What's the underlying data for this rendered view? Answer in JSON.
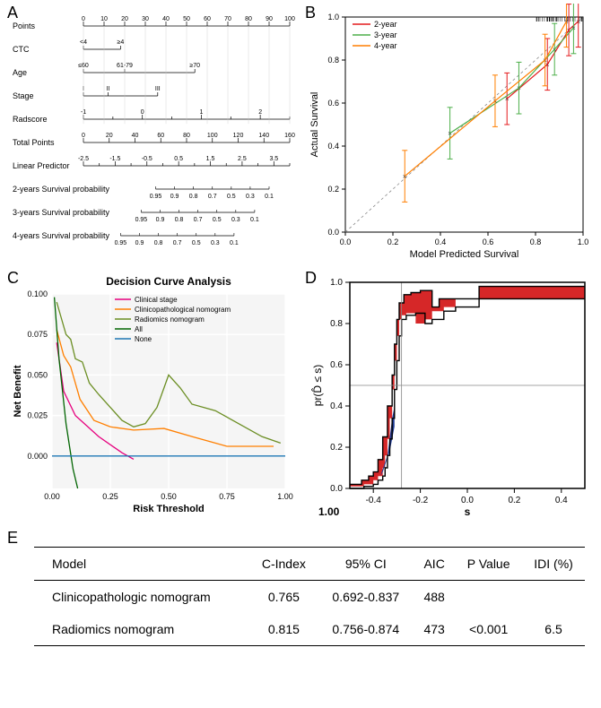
{
  "panelA": {
    "label": "A",
    "rows": [
      {
        "name": "Points",
        "type": "axis",
        "min": 0,
        "max": 100,
        "step": 10
      },
      {
        "name": "CTC",
        "type": "cat",
        "items": [
          {
            "label": "<4",
            "x": 0
          },
          {
            "label": "≥4",
            "x": 18
          }
        ]
      },
      {
        "name": "Age",
        "type": "cat",
        "items": [
          {
            "label": "≤60",
            "x": 0
          },
          {
            "label": "61-79",
            "x": 20
          },
          {
            "label": "≥70",
            "x": 54
          }
        ]
      },
      {
        "name": "Stage",
        "type": "cat",
        "items": [
          {
            "label": "I",
            "x": 0
          },
          {
            "label": "II",
            "x": 12
          },
          {
            "label": "III",
            "x": 36
          }
        ]
      },
      {
        "name": "Radscore",
        "type": "axis",
        "min": -1,
        "max": 2.5,
        "step": 0.5,
        "scaleTo": 100
      },
      {
        "name": "Total Points",
        "type": "axis",
        "min": 0,
        "max": 160,
        "step": 20
      },
      {
        "name": "Linear Predictor",
        "type": "axis",
        "min": -2.5,
        "max": 4,
        "step": 0.5
      },
      {
        "name": "2-years Survival probability",
        "type": "prob",
        "labels": [
          "0.95",
          "0.9",
          "0.8",
          "0.7",
          "0.5",
          "0.3",
          "0.1"
        ],
        "offset": 35
      },
      {
        "name": "3-years Survival probability",
        "type": "prob",
        "labels": [
          "0.95",
          "0.9",
          "0.8",
          "0.7",
          "0.5",
          "0.3",
          "0.1"
        ],
        "offset": 28
      },
      {
        "name": "4-years Survival probability",
        "type": "prob",
        "labels": [
          "0.95",
          "0.9",
          "0.8",
          "0.7",
          "0.5",
          "0.3",
          "0.1"
        ],
        "offset": 18
      }
    ],
    "label_fontsize": 9,
    "tick_fontsize": 7
  },
  "panelB": {
    "label": "B",
    "xlabel": "Model Predicted Survival",
    "ylabel": "Actual Survival",
    "xlim": [
      0,
      1
    ],
    "ylim": [
      0,
      1
    ],
    "tick_step": 0.2,
    "legend": [
      {
        "label": "2-year",
        "color": "#e41a1c"
      },
      {
        "label": "3-year",
        "color": "#4daf4a"
      },
      {
        "label": "4-year",
        "color": "#ff7f00"
      }
    ],
    "diag_color": "#888888",
    "points": {
      "2-year": [
        [
          0.68,
          0.62
        ],
        [
          0.85,
          0.78
        ],
        [
          0.94,
          0.94
        ],
        [
          0.98,
          0.98
        ]
      ],
      "3-year": [
        [
          0.44,
          0.46
        ],
        [
          0.73,
          0.67
        ],
        [
          0.88,
          0.85
        ],
        [
          0.96,
          0.95
        ]
      ],
      "4-year": [
        [
          0.25,
          0.26
        ],
        [
          0.63,
          0.61
        ],
        [
          0.84,
          0.8
        ],
        [
          0.93,
          0.98
        ]
      ]
    },
    "errbar_half": 0.12,
    "label_fontsize": 11
  },
  "panelC": {
    "label": "C",
    "title": "Decision Curve Analysis",
    "xlabel": "Risk Threshold",
    "ylabel": "Net Benefit",
    "xlim": [
      0,
      1
    ],
    "ylim": [
      -0.02,
      0.1
    ],
    "xticks": [
      0.0,
      0.25,
      0.5,
      0.75,
      1.0
    ],
    "yticks": [
      0.0,
      0.025,
      0.05,
      0.075,
      0.1
    ],
    "legend": [
      {
        "label": "Clinical stage",
        "color": "#e6007e"
      },
      {
        "label": "Clinicopathological nomogram",
        "color": "#ff7f00"
      },
      {
        "label": "Radiomics nomogram",
        "color": "#6b8e23"
      },
      {
        "label": "All",
        "color": "#006400"
      },
      {
        "label": "None",
        "color": "#1f77b4"
      }
    ],
    "series": {
      "Clinical stage": [
        [
          0.02,
          0.07
        ],
        [
          0.05,
          0.04
        ],
        [
          0.1,
          0.025
        ],
        [
          0.2,
          0.012
        ],
        [
          0.3,
          0.002
        ],
        [
          0.35,
          -0.002
        ]
      ],
      "Clinicopathological nomogram": [
        [
          0.02,
          0.078
        ],
        [
          0.05,
          0.062
        ],
        [
          0.08,
          0.055
        ],
        [
          0.12,
          0.035
        ],
        [
          0.18,
          0.022
        ],
        [
          0.25,
          0.018
        ],
        [
          0.35,
          0.016
        ],
        [
          0.48,
          0.017
        ],
        [
          0.6,
          0.012
        ],
        [
          0.75,
          0.006
        ],
        [
          0.95,
          0.006
        ]
      ],
      "Radiomics nomogram": [
        [
          0.02,
          0.095
        ],
        [
          0.04,
          0.085
        ],
        [
          0.06,
          0.075
        ],
        [
          0.08,
          0.072
        ],
        [
          0.1,
          0.06
        ],
        [
          0.13,
          0.058
        ],
        [
          0.16,
          0.045
        ],
        [
          0.2,
          0.038
        ],
        [
          0.25,
          0.03
        ],
        [
          0.3,
          0.022
        ],
        [
          0.35,
          0.018
        ],
        [
          0.4,
          0.02
        ],
        [
          0.45,
          0.03
        ],
        [
          0.5,
          0.05
        ],
        [
          0.55,
          0.042
        ],
        [
          0.6,
          0.032
        ],
        [
          0.7,
          0.028
        ],
        [
          0.8,
          0.02
        ],
        [
          0.9,
          0.012
        ],
        [
          0.98,
          0.008
        ]
      ],
      "All": [
        [
          0.01,
          0.098
        ],
        [
          0.03,
          0.06
        ],
        [
          0.06,
          0.02
        ],
        [
          0.09,
          -0.008
        ],
        [
          0.11,
          -0.02
        ]
      ],
      "None": [
        [
          0.0,
          0.0
        ],
        [
          1.0,
          0.0
        ]
      ]
    },
    "grid_color": "#e6e6e6",
    "label_fontsize": 11,
    "title_fontsize": 12
  },
  "panelD": {
    "label": "D",
    "xlabel": "s",
    "ylabel": "pr(D̂ ≤ s)",
    "xlim": [
      -0.5,
      0.5
    ],
    "ylim": [
      0,
      1
    ],
    "xticks": [
      -0.4,
      -0.2,
      0.0,
      0.2,
      0.4
    ],
    "yticks": [
      0.0,
      0.2,
      0.4,
      0.6,
      0.8,
      1.0
    ],
    "vref": -0.28,
    "href": 0.5,
    "red_color": "#d62728",
    "blue_color": "#1f3a93",
    "step_upper": [
      [
        -0.5,
        0.02
      ],
      [
        -0.45,
        0.04
      ],
      [
        -0.42,
        0.06
      ],
      [
        -0.4,
        0.08
      ],
      [
        -0.38,
        0.14
      ],
      [
        -0.36,
        0.25
      ],
      [
        -0.34,
        0.4
      ],
      [
        -0.32,
        0.55
      ],
      [
        -0.31,
        0.7
      ],
      [
        -0.3,
        0.82
      ],
      [
        -0.29,
        0.9
      ],
      [
        -0.27,
        0.94
      ],
      [
        -0.24,
        0.95
      ],
      [
        -0.2,
        0.96
      ],
      [
        -0.15,
        0.88
      ],
      [
        -0.12,
        0.92
      ],
      [
        -0.05,
        0.92
      ],
      [
        0.05,
        0.98
      ],
      [
        0.2,
        0.98
      ],
      [
        0.4,
        0.98
      ],
      [
        0.5,
        0.98
      ]
    ],
    "step_lower": [
      [
        -0.5,
        0.0
      ],
      [
        -0.44,
        0.01
      ],
      [
        -0.4,
        0.02
      ],
      [
        -0.38,
        0.04
      ],
      [
        -0.36,
        0.06
      ],
      [
        -0.35,
        0.1
      ],
      [
        -0.34,
        0.16
      ],
      [
        -0.33,
        0.24
      ],
      [
        -0.32,
        0.34
      ],
      [
        -0.31,
        0.48
      ],
      [
        -0.3,
        0.62
      ],
      [
        -0.29,
        0.74
      ],
      [
        -0.28,
        0.82
      ],
      [
        -0.26,
        0.84
      ],
      [
        -0.22,
        0.85
      ],
      [
        -0.18,
        0.8
      ],
      [
        -0.15,
        0.82
      ],
      [
        -0.1,
        0.86
      ],
      [
        -0.05,
        0.88
      ],
      [
        0.05,
        0.92
      ],
      [
        0.2,
        0.92
      ],
      [
        0.4,
        0.92
      ],
      [
        0.5,
        0.92
      ]
    ],
    "label_fontsize": 12
  },
  "panelE": {
    "label": "E",
    "columns": [
      "Model",
      "C-Index",
      "95% CI",
      "AIC",
      "P Value",
      "IDI (%)"
    ],
    "rows": [
      [
        "Clinicopathologic nomogram",
        "0.765",
        "0.692-0.837",
        "488",
        "",
        ""
      ],
      [
        "Radiomics nomogram",
        "0.815",
        "0.756-0.874",
        "473",
        "<0.001",
        "6.5"
      ]
    ],
    "fontsize": 14
  }
}
